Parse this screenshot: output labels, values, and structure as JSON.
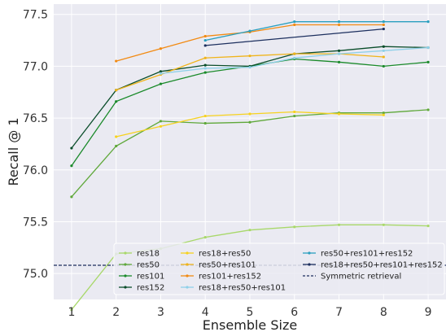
{
  "chart_data": {
    "type": "line",
    "title": "",
    "xlabel": "Ensemble Size",
    "ylabel": "Recall @ 1",
    "xlim": [
      0.6,
      9.4
    ],
    "ylim": [
      74.75,
      77.6
    ],
    "x_ticks": [
      1,
      2,
      3,
      4,
      5,
      6,
      7,
      8,
      9
    ],
    "y_ticks": [
      75.0,
      75.5,
      76.0,
      76.5,
      77.0,
      77.5
    ],
    "y_tick_labels": [
      "75.0",
      "75.5",
      "76.0",
      "76.5",
      "77.0",
      "77.5"
    ],
    "grid": true,
    "legend_position": "bottom-right, 3 columns",
    "series": [
      {
        "name": "res18",
        "color": "#a8d86a",
        "dash": "solid",
        "x": [
          1,
          2,
          3,
          4,
          5,
          6,
          7,
          8,
          9
        ],
        "y": [
          74.65,
          75.19,
          75.24,
          75.35,
          75.42,
          75.45,
          75.47,
          75.47,
          75.46
        ]
      },
      {
        "name": "res50",
        "color": "#5fa83a",
        "dash": "solid",
        "x": [
          1,
          2,
          3,
          4,
          5,
          6,
          7,
          8,
          9
        ],
        "y": [
          75.74,
          76.23,
          76.47,
          76.45,
          76.46,
          76.52,
          76.55,
          76.55,
          76.58
        ]
      },
      {
        "name": "res101",
        "color": "#1a8a2a",
        "dash": "solid",
        "x": [
          1,
          2,
          3,
          4,
          5,
          6,
          7,
          8,
          9
        ],
        "y": [
          76.04,
          76.66,
          76.83,
          76.94,
          77.0,
          77.07,
          77.04,
          77.0,
          77.04
        ]
      },
      {
        "name": "res152",
        "color": "#0a4d2a",
        "dash": "solid",
        "x": [
          1,
          2,
          3,
          4,
          5,
          6,
          7,
          8,
          9
        ],
        "y": [
          76.21,
          76.77,
          76.95,
          77.01,
          77.0,
          77.12,
          77.15,
          77.19,
          77.18
        ]
      },
      {
        "name": "res18+res50",
        "color": "#f7d21e",
        "dash": "solid",
        "x": [
          2,
          3,
          4,
          5,
          6,
          7,
          8
        ],
        "y": [
          76.32,
          76.42,
          76.52,
          76.54,
          76.56,
          76.54,
          76.53
        ]
      },
      {
        "name": "res50+res101",
        "color": "#f0b41a",
        "dash": "solid",
        "x": [
          2,
          3,
          4,
          5,
          6,
          7,
          8
        ],
        "y": [
          76.77,
          76.92,
          77.08,
          77.1,
          77.12,
          77.12,
          77.09
        ]
      },
      {
        "name": "res101+res152",
        "color": "#f28a12",
        "dash": "solid",
        "x": [
          2,
          3,
          4,
          5,
          6,
          7,
          8
        ],
        "y": [
          77.05,
          77.17,
          77.29,
          77.33,
          77.4,
          77.4,
          77.4
        ]
      },
      {
        "name": "res18+res50+res101",
        "color": "#8fd0e8",
        "dash": "solid",
        "x": [
          3,
          4,
          5,
          6,
          7,
          8,
          9
        ],
        "y": [
          76.93,
          76.98,
          76.99,
          77.08,
          77.12,
          77.15,
          77.18
        ]
      },
      {
        "name": "res50+res101+res152",
        "color": "#2a9fbf",
        "dash": "solid",
        "x": [
          4,
          5,
          6,
          7,
          8,
          9
        ],
        "y": [
          77.25,
          77.34,
          77.43,
          77.43,
          77.43,
          77.43
        ]
      },
      {
        "name": "res18+res50+res101+res152",
        "color": "#1c2f5e",
        "dash": "solid",
        "x": [
          4,
          8
        ],
        "y": [
          77.2,
          77.36
        ]
      },
      {
        "name": "Symmetric retrieval",
        "color": "#1c2f5e",
        "dash": "dashed",
        "x": [
          0.6,
          9.4
        ],
        "y": [
          75.08,
          75.08
        ]
      }
    ]
  }
}
